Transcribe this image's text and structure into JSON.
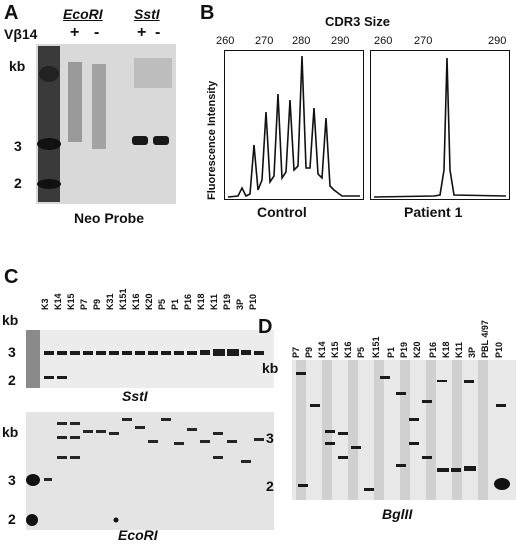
{
  "panel_a": {
    "letter": "A",
    "enzyme1": "EcoRI",
    "enzyme2": "SstI",
    "row_label": "Vβ14",
    "signs": [
      "+",
      "-",
      "+",
      "-"
    ],
    "kb_label": "kb",
    "size_marks": [
      "3",
      "2"
    ],
    "caption": "Neo Probe"
  },
  "panel_b": {
    "letter": "B",
    "title": "CDR3 Size",
    "ylabel": "Fluorescence Intensity",
    "ticks": [
      "260",
      "270",
      "280",
      "290"
    ],
    "left_caption": "Control",
    "right_caption": "Patient 1"
  },
  "panel_c": {
    "letter": "C",
    "lanes": [
      "K3",
      "K14",
      "K15",
      "P7",
      "P9",
      "K31",
      "K151",
      "K16",
      "K20",
      "P5",
      "P1",
      "P16",
      "K18",
      "K11",
      "P19",
      "3P",
      "P10"
    ],
    "kb_label": "kb",
    "top_marks": [
      "3",
      "2"
    ],
    "bottom_marks": [
      "3",
      "2"
    ],
    "top_caption": "SstI",
    "bottom_caption": "EcoRI"
  },
  "panel_d": {
    "letter": "D",
    "lanes": [
      "P7",
      "P9",
      "K14",
      "K15",
      "K16",
      "P5",
      "K151",
      "P1",
      "P19",
      "K20",
      "P16",
      "K18",
      "K11",
      "3P",
      "PBL 4/97",
      "P10"
    ],
    "kb_label": "kb",
    "marks": [
      "3",
      "2"
    ],
    "caption": "BglII"
  }
}
